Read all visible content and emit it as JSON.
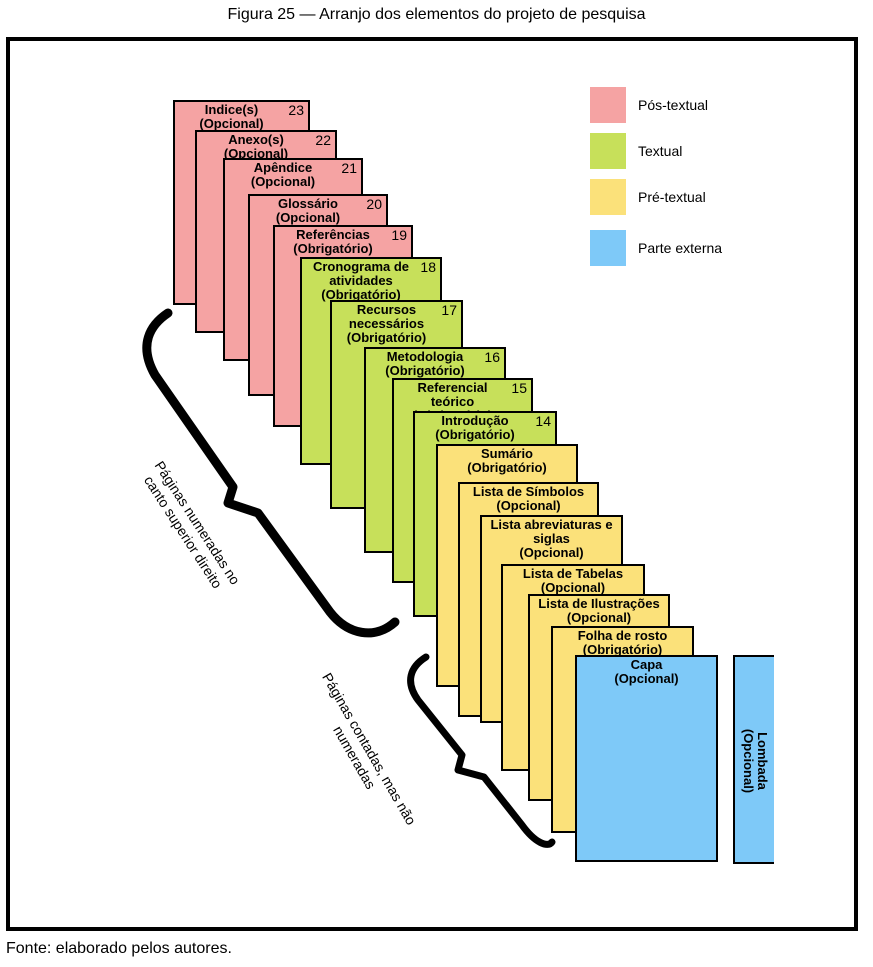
{
  "caption": "Figura 25 — Arranjo dos elementos do projeto de pesquisa",
  "source": "Fonte: elaborado pelos autores.",
  "legend": [
    {
      "label": "Pós-textual",
      "color": "#f5a3a3"
    },
    {
      "label": "Textual",
      "color": "#c7e05a"
    },
    {
      "label": "Pré-textual",
      "color": "#fbe17a"
    },
    {
      "label": "Parte externa",
      "color": "#7ec9f8"
    }
  ],
  "cards": [
    {
      "label": "Indice(s)\n(Opcional)",
      "num": "23",
      "group": "post"
    },
    {
      "label": "Anexo(s)\n(Opcional)",
      "num": "22",
      "group": "post"
    },
    {
      "label": "Apêndice\n(Opcional)",
      "num": "21",
      "group": "post"
    },
    {
      "label": "Glossário\n(Opcional)",
      "num": "20",
      "group": "post"
    },
    {
      "label": "Referências\n(Obrigatório)",
      "num": "19",
      "group": "post"
    },
    {
      "label": "Cronograma de\natividades\n(Obrigatório)",
      "num": "18",
      "group": "text"
    },
    {
      "label": "Recursos\nnecessários\n(Obrigatório)",
      "num": "17",
      "group": "text"
    },
    {
      "label": "Metodologia\n(Obrigatório)",
      "num": "16",
      "group": "text"
    },
    {
      "label": "Referencial teórico\n(Obrigatório)",
      "num": "15",
      "group": "text"
    },
    {
      "label": "Introdução\n(Obrigatório)",
      "num": "14",
      "group": "text"
    },
    {
      "label": "Sumário\n(Obrigatório)",
      "num": "",
      "group": "pre"
    },
    {
      "label": "Lista de Símbolos\n(Opcional)",
      "num": "",
      "group": "pre"
    },
    {
      "label": "Lista abreviaturas e\nsiglas\n(Opcional)",
      "num": "",
      "group": "pre"
    },
    {
      "label": "Lista de Tabelas\n(Opcional)",
      "num": "",
      "group": "pre"
    },
    {
      "label": "Lista de Ilustrações\n(Opcional)",
      "num": "",
      "group": "pre"
    },
    {
      "label": "Folha de rosto\n(Obrigatório)",
      "num": "",
      "group": "pre"
    },
    {
      "label": "Capa\n(Opcional)",
      "num": "",
      "group": "ext"
    }
  ],
  "spine": {
    "label": "Lombada\n(Opcional)"
  },
  "notes": {
    "numbered": "Páginas numeradas no\ncanto superior direito",
    "counted": "Páginas contadas, mas não\nnumeradas"
  }
}
